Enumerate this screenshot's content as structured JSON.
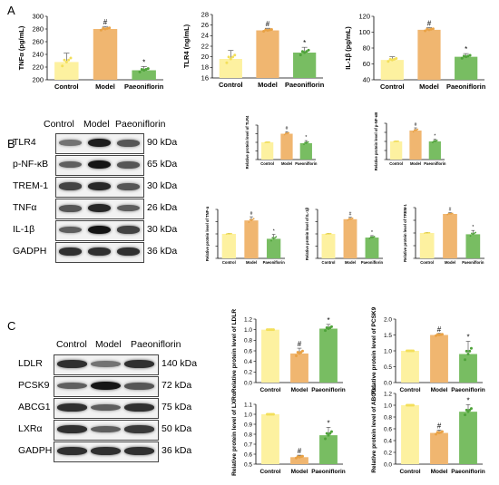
{
  "panel_labels": {
    "a": "A",
    "b": "B",
    "c": "C"
  },
  "blot_b": {
    "lanes": [
      "Control",
      "Model",
      "Paeoniflorin"
    ],
    "rows": [
      {
        "name": "TLR4",
        "kda": "90 kDa",
        "intensity": [
          0.45,
          0.9,
          0.6
        ]
      },
      {
        "name": "p-NF-κB",
        "kda": "65 kDa",
        "intensity": [
          0.55,
          0.95,
          0.6
        ]
      },
      {
        "name": "TREM-1",
        "kda": "30 kDa",
        "intensity": [
          0.7,
          0.85,
          0.6
        ]
      },
      {
        "name": "TNFα",
        "kda": "26 kDa",
        "intensity": [
          0.6,
          0.85,
          0.55
        ]
      },
      {
        "name": "IL-1β",
        "kda": "30 kDa",
        "intensity": [
          0.55,
          0.95,
          0.7
        ]
      },
      {
        "name": "GADPH",
        "kda": "36 kDa",
        "intensity": [
          0.8,
          0.8,
          0.8
        ]
      }
    ]
  },
  "blot_c": {
    "lanes": [
      "Control",
      "Model",
      "Paeoniflorin"
    ],
    "rows": [
      {
        "name": "LDLR",
        "kda": "140 kDa",
        "intensity": [
          0.8,
          0.45,
          0.8
        ]
      },
      {
        "name": "PCSK9",
        "kda": "72 kDa",
        "intensity": [
          0.55,
          0.95,
          0.6
        ]
      },
      {
        "name": "ABCG1",
        "kda": "75 kDa",
        "intensity": [
          0.8,
          0.55,
          0.8
        ]
      },
      {
        "name": "LXRα",
        "kda": "50 kDa",
        "intensity": [
          0.8,
          0.55,
          0.75
        ]
      },
      {
        "name": "GADPH",
        "kda": "36 kDa",
        "intensity": [
          0.8,
          0.8,
          0.8
        ]
      }
    ]
  },
  "colors": {
    "control": "#fdf1a0",
    "model": "#f0b670",
    "paeoniflorin": "#78bd62",
    "axis": "#000000"
  },
  "chart_data": [
    {
      "id": "tnf",
      "type": "bar",
      "categories": [
        "Control",
        "Model",
        "Paeoniflorin"
      ],
      "values": [
        228,
        280,
        215
      ],
      "errors": [
        14,
        4,
        6
      ],
      "ylabel": "TNFα (pg/mL)",
      "ylim": [
        200,
        300
      ],
      "yticks": [
        200,
        220,
        240,
        260,
        280,
        300
      ],
      "tick_labels": [
        "200",
        "220",
        "240",
        "260",
        "280",
        "300"
      ],
      "annotations": [
        "",
        "#",
        "*"
      ]
    },
    {
      "id": "tlr4",
      "type": "bar",
      "categories": [
        "Control",
        "Model",
        "Paeoniflorin"
      ],
      "values": [
        19.6,
        25.0,
        20.8
      ],
      "errors": [
        1.6,
        0.4,
        1.0
      ],
      "ylabel": "TLR4 (ng/mL)",
      "ylim": [
        16,
        28
      ],
      "yticks": [
        16,
        18,
        20,
        22,
        24,
        26,
        28
      ],
      "tick_labels": [
        "16",
        "18",
        "20",
        "22",
        "24",
        "26",
        "28"
      ],
      "annotations": [
        "",
        "#",
        "*"
      ]
    },
    {
      "id": "il1b",
      "type": "bar",
      "categories": [
        "Control",
        "Model",
        "Paeoniflorin"
      ],
      "values": [
        65,
        103,
        69
      ],
      "errors": [
        4,
        3,
        4
      ],
      "ylabel": "IL-1β (pg/mL)",
      "ylim": [
        40,
        120
      ],
      "yticks": [
        40,
        60,
        80,
        100,
        120
      ],
      "tick_labels": [
        "40",
        "60",
        "80",
        "100",
        "120"
      ],
      "annotations": [
        "",
        "#",
        "*"
      ]
    },
    {
      "id": "b_tlr4",
      "type": "bar",
      "categories": [
        "Control",
        "Model",
        "Paeoniflorin"
      ],
      "values": [
        1.0,
        1.5,
        0.95
      ],
      "errors": [
        0.02,
        0.12,
        0.15
      ],
      "ylabel": "Relative protein level of TLR4",
      "ylim": [
        0,
        2
      ],
      "yticks": [
        0,
        0.5,
        1,
        1.5,
        2
      ],
      "tick_labels": [
        "",
        "",
        "",
        "",
        ""
      ],
      "annotations": [
        "",
        "#",
        "*"
      ]
    },
    {
      "id": "b_pnfkb",
      "type": "bar",
      "categories": [
        "Control",
        "Model",
        "Paeoniflorin"
      ],
      "values": [
        1.0,
        1.6,
        1.0
      ],
      "errors": [
        0.02,
        0.15,
        0.12
      ],
      "ylabel": "Relative protein level of p-NF-κB",
      "ylim": [
        0,
        2
      ],
      "yticks": [
        0,
        0.5,
        1,
        1.5,
        2
      ],
      "tick_labels": [
        "",
        "",
        "",
        "",
        ""
      ],
      "annotations": [
        "",
        "#",
        "*"
      ]
    },
    {
      "id": "b_tnf",
      "type": "bar",
      "categories": [
        "Control",
        "Model",
        "Paeoniflorin"
      ],
      "values": [
        1.0,
        1.55,
        0.8
      ],
      "errors": [
        0.02,
        0.15,
        0.18
      ],
      "ylabel": "Relative protein level of TNF-α",
      "ylim": [
        0,
        2
      ],
      "yticks": [
        0,
        0.5,
        1,
        1.5,
        2
      ],
      "tick_labels": [
        "",
        "",
        "",
        "",
        ""
      ],
      "annotations": [
        "",
        "#",
        "*"
      ]
    },
    {
      "id": "b_il1b",
      "type": "bar",
      "categories": [
        "Control",
        "Model",
        "Paeoniflorin"
      ],
      "values": [
        1.0,
        1.6,
        0.85
      ],
      "errors": [
        0.02,
        0.08,
        0.08
      ],
      "ylabel": "Relative protein level of IL-1β",
      "ylim": [
        0,
        2
      ],
      "yticks": [
        0,
        0.5,
        1,
        1.5,
        2
      ],
      "tick_labels": [
        "",
        "",
        "",
        "",
        ""
      ],
      "annotations": [
        "",
        "#",
        "*"
      ]
    },
    {
      "id": "b_trem1",
      "type": "bar",
      "categories": [
        "Control",
        "Model",
        "Paeoniflorin"
      ],
      "values": [
        1.0,
        1.75,
        0.95
      ],
      "errors": [
        0.02,
        0.05,
        0.15
      ],
      "ylabel": "Relative protein level of TREM-1",
      "ylim": [
        0,
        2
      ],
      "yticks": [
        0,
        0.5,
        1,
        1.5,
        2
      ],
      "tick_labels": [
        "",
        "",
        "",
        "",
        ""
      ],
      "annotations": [
        "",
        "#",
        "*"
      ]
    },
    {
      "id": "c_ldlr",
      "type": "bar",
      "categories": [
        "Control",
        "Model",
        "Paeoniflorin"
      ],
      "values": [
        1.0,
        0.55,
        1.02
      ],
      "errors": [
        0.0,
        0.1,
        0.08
      ],
      "ylabel": "Relative protein level of LDLR",
      "ylim": [
        0,
        1.2
      ],
      "yticks": [
        0,
        0.2,
        0.4,
        0.6,
        0.8,
        1.0,
        1.2
      ],
      "tick_labels": [
        "0.0",
        "0.2",
        "0.4",
        "0.6",
        "0.8",
        "1.0",
        "1.2"
      ],
      "annotations": [
        "",
        "#",
        "*"
      ]
    },
    {
      "id": "c_pcsk9",
      "type": "bar",
      "categories": [
        "Control",
        "Model",
        "Paeoniflorin"
      ],
      "values": [
        1.0,
        1.5,
        0.9
      ],
      "errors": [
        0.0,
        0.05,
        0.4
      ],
      "ylabel": "Relative protein level of PCSK9",
      "ylim": [
        0,
        2.0
      ],
      "yticks": [
        0,
        0.5,
        1.0,
        1.5,
        2.0
      ],
      "tick_labels": [
        "0.0",
        "0.5",
        "1.0",
        "1.5",
        "2.0"
      ],
      "annotations": [
        "",
        "#",
        "*"
      ]
    },
    {
      "id": "c_lxra",
      "type": "bar",
      "categories": [
        "Control",
        "Model",
        "Paeoniflorin"
      ],
      "values": [
        1.0,
        0.57,
        0.79
      ],
      "errors": [
        0.0,
        0.02,
        0.08
      ],
      "ylabel": "Relative protein level of LXRα",
      "ylim": [
        0.5,
        1.1
      ],
      "yticks": [
        0.5,
        0.6,
        0.7,
        0.8,
        0.9,
        1.0,
        1.1
      ],
      "tick_labels": [
        "0.5",
        "0.6",
        "0.7",
        "0.8",
        "0.9",
        "1.0",
        "1.1"
      ],
      "annotations": [
        "",
        "#",
        "*"
      ]
    },
    {
      "id": "c_abcg1",
      "type": "bar",
      "categories": [
        "Control",
        "Model",
        "Paeoniflorin"
      ],
      "values": [
        1.0,
        0.53,
        0.89
      ],
      "errors": [
        0.0,
        0.05,
        0.12
      ],
      "ylabel": "Relative protein level of ABCG1",
      "ylim": [
        0,
        1.2
      ],
      "yticks": [
        0,
        0.2,
        0.4,
        0.6,
        0.8,
        1.0,
        1.2
      ],
      "tick_labels": [
        "0.0",
        "0.2",
        "0.4",
        "0.6",
        "0.8",
        "1.0",
        "1.2"
      ],
      "annotations": [
        "",
        "#",
        "*"
      ]
    }
  ]
}
